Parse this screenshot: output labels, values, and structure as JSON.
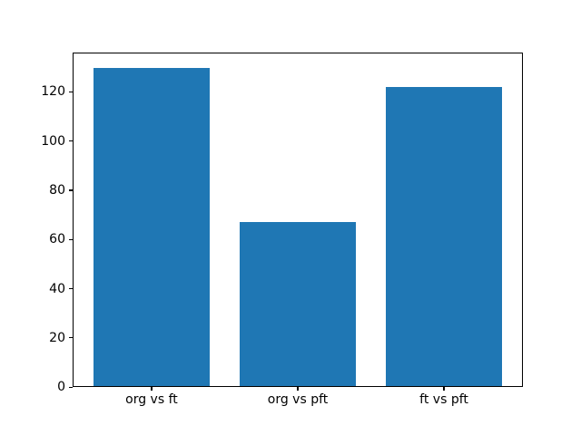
{
  "chart_data": {
    "type": "bar",
    "title": "",
    "xlabel": "",
    "ylabel": "",
    "categories": [
      "org vs ft",
      "org vs pft",
      "ft vs pft"
    ],
    "values": [
      129.6,
      67.1,
      121.9
    ],
    "yticks": [
      0,
      20,
      40,
      60,
      80,
      100,
      120
    ],
    "ylim": [
      0,
      136.1
    ],
    "xlim": [
      -0.54,
      2.54
    ],
    "bar_positions": [
      0,
      1,
      2
    ],
    "bar_width_units": 0.8,
    "bar_color": "#1f77b4",
    "spine_color": "#000000",
    "tick_label_color": "#000000",
    "background_color": "#ffffff",
    "grid": false,
    "legend_position": "none"
  }
}
